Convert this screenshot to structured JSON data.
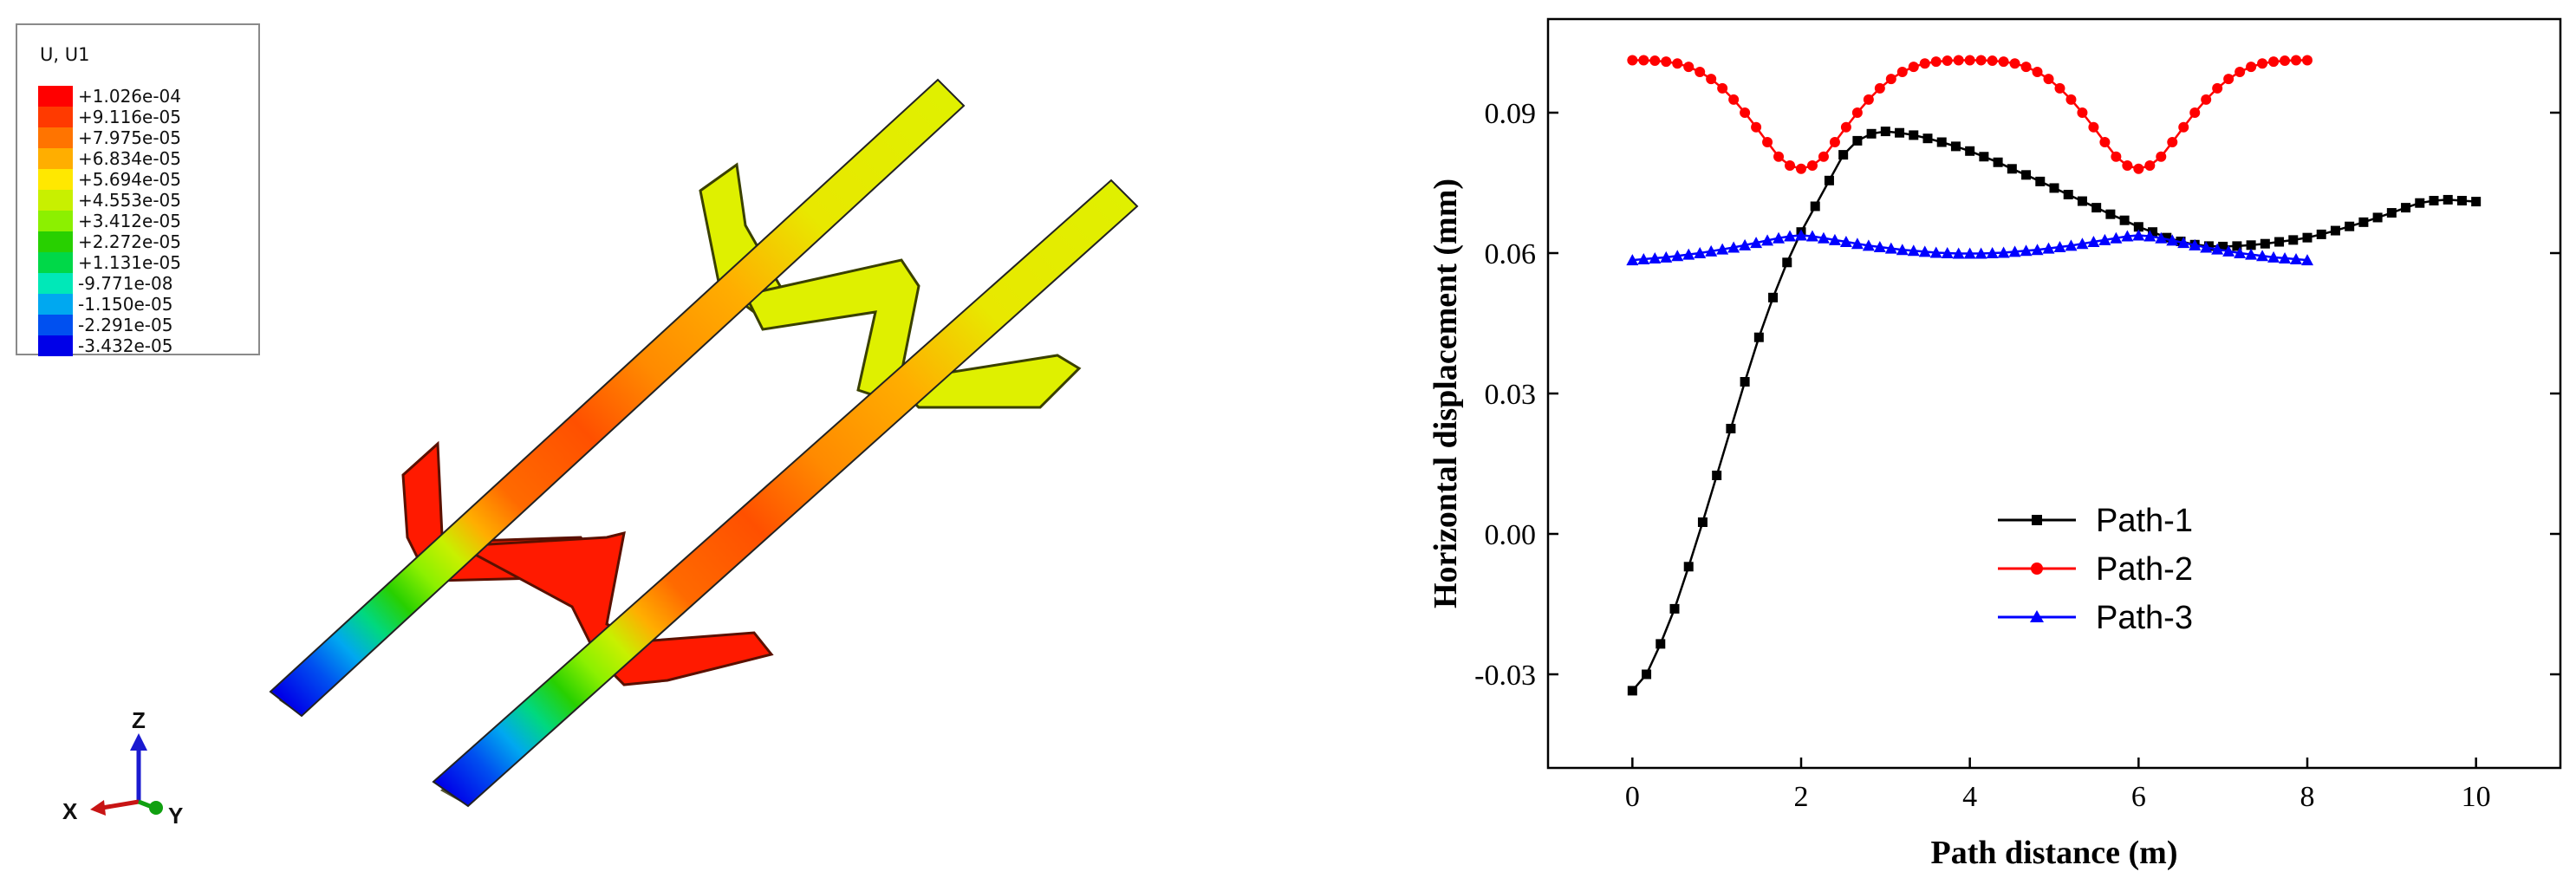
{
  "contour": {
    "title": "U, U1",
    "levels": [
      {
        "label": "+1.026e-04",
        "color": "#ff0000"
      },
      {
        "label": "+9.116e-05",
        "color": "#ff3a00"
      },
      {
        "label": "+7.975e-05",
        "color": "#ff7400"
      },
      {
        "label": "+6.834e-05",
        "color": "#ffae00"
      },
      {
        "label": "+5.694e-05",
        "color": "#ffe800"
      },
      {
        "label": "+4.553e-05",
        "color": "#c8f000"
      },
      {
        "label": "+3.412e-05",
        "color": "#8cf000"
      },
      {
        "label": "+2.272e-05",
        "color": "#28d000"
      },
      {
        "label": "+1.131e-05",
        "color": "#00d848"
      },
      {
        "label": "-9.771e-08",
        "color": "#00e8b8"
      },
      {
        "label": "-1.150e-05",
        "color": "#00a8f0"
      },
      {
        "label": "-2.291e-05",
        "color": "#0050f0"
      },
      {
        "label": "-3.432e-05",
        "color": "#0000e8"
      }
    ]
  },
  "triad": {
    "x": "X",
    "y": "Y",
    "z": "Z"
  },
  "chart_data": {
    "type": "line",
    "xlabel": "Path distance (m)",
    "ylabel": "Horizontal displacement (mm)",
    "xlim": [
      -1,
      11
    ],
    "ylim": [
      -0.05,
      0.11
    ],
    "xticks": [
      0,
      2,
      4,
      6,
      8,
      10
    ],
    "xtick_labels": [
      "0",
      "2",
      "4",
      "6",
      "8",
      "10"
    ],
    "yticks": [
      -0.03,
      0.0,
      0.03,
      0.06,
      0.09
    ],
    "ytick_labels": [
      "-0.03",
      "0.00",
      "0.03",
      "0.06",
      "0.09"
    ],
    "legend_position": "center",
    "series": [
      {
        "name": "Path-1",
        "color": "#000000",
        "marker": "square",
        "x": [
          0,
          0.1667,
          0.3333,
          0.5,
          0.6667,
          0.8333,
          1.0,
          1.1667,
          1.3333,
          1.5,
          1.6667,
          1.8333,
          2.0,
          2.1667,
          2.3333,
          2.5,
          2.6667,
          2.8333,
          3.0,
          3.1667,
          3.3333,
          3.5,
          3.6667,
          3.8333,
          4.0,
          4.1667,
          4.3333,
          4.5,
          4.6667,
          4.8333,
          5.0,
          5.1667,
          5.3333,
          5.5,
          5.6667,
          5.8333,
          6.0,
          6.1667,
          6.3333,
          6.5,
          6.6667,
          6.8333,
          7.0,
          7.1667,
          7.3333,
          7.5,
          7.6667,
          7.8333,
          8.0,
          8.1667,
          8.3333,
          8.5,
          8.6667,
          8.8333,
          9.0,
          9.1667,
          9.3333,
          9.5,
          9.6667,
          9.8333,
          10.0
        ],
        "y": [
          -0.0335,
          -0.03,
          -0.0235,
          -0.016,
          -0.007,
          0.0025,
          0.0125,
          0.0225,
          0.0325,
          0.042,
          0.0505,
          0.058,
          0.0645,
          0.07,
          0.0755,
          0.081,
          0.084,
          0.0855,
          0.086,
          0.0857,
          0.0852,
          0.0845,
          0.0837,
          0.0828,
          0.0818,
          0.0806,
          0.0794,
          0.078,
          0.0767,
          0.0753,
          0.0739,
          0.0725,
          0.0711,
          0.0697,
          0.0683,
          0.067,
          0.0656,
          0.0645,
          0.0633,
          0.0625,
          0.0618,
          0.0615,
          0.0614,
          0.0615,
          0.0617,
          0.062,
          0.0624,
          0.0628,
          0.0633,
          0.064,
          0.0648,
          0.0657,
          0.0666,
          0.0676,
          0.0686,
          0.0697,
          0.0707,
          0.0712,
          0.0714,
          0.0712,
          0.071
        ]
      },
      {
        "name": "Path-2",
        "color": "#ff0000",
        "marker": "circle",
        "x": [
          0,
          0.1333,
          0.2667,
          0.4,
          0.5333,
          0.6667,
          0.8,
          0.9333,
          1.0667,
          1.2,
          1.3333,
          1.4667,
          1.6,
          1.7333,
          1.8667,
          2.0,
          2.1333,
          2.2667,
          2.4,
          2.5333,
          2.6667,
          2.8,
          2.9333,
          3.0667,
          3.2,
          3.3333,
          3.4667,
          3.6,
          3.7333,
          3.8667,
          4.0,
          4.1333,
          4.2667,
          4.4,
          4.5333,
          4.6667,
          4.8,
          4.9333,
          5.0667,
          5.2,
          5.3333,
          5.4667,
          5.6,
          5.7333,
          5.8667,
          6.0,
          6.1333,
          6.2667,
          6.4,
          6.5333,
          6.6667,
          6.8,
          6.9333,
          7.0667,
          7.2,
          7.3333,
          7.4667,
          7.6,
          7.7333,
          7.8667,
          8.0
        ],
        "y": [
          0.1012,
          0.1012,
          0.1011,
          0.1009,
          0.1005,
          0.0998,
          0.0987,
          0.0972,
          0.0952,
          0.0928,
          0.09,
          0.0869,
          0.0837,
          0.0806,
          0.0787,
          0.078,
          0.0787,
          0.0806,
          0.0837,
          0.0869,
          0.09,
          0.0928,
          0.0952,
          0.0972,
          0.0987,
          0.0998,
          0.1005,
          0.1009,
          0.1011,
          0.1012,
          0.1012,
          0.1012,
          0.1011,
          0.1009,
          0.1005,
          0.0998,
          0.0987,
          0.0972,
          0.0952,
          0.0928,
          0.09,
          0.0869,
          0.0837,
          0.0806,
          0.0787,
          0.078,
          0.0787,
          0.0806,
          0.0837,
          0.0869,
          0.09,
          0.0928,
          0.0952,
          0.0972,
          0.0987,
          0.0998,
          0.1005,
          0.1009,
          0.1011,
          0.1012,
          0.1012
        ]
      },
      {
        "name": "Path-3",
        "color": "#0000ff",
        "marker": "triangle",
        "x": [
          0,
          0.1333,
          0.2667,
          0.4,
          0.5333,
          0.6667,
          0.8,
          0.9333,
          1.0667,
          1.2,
          1.3333,
          1.4667,
          1.6,
          1.7333,
          1.8667,
          2.0,
          2.1333,
          2.2667,
          2.4,
          2.5333,
          2.6667,
          2.8,
          2.9333,
          3.0667,
          3.2,
          3.3333,
          3.4667,
          3.6,
          3.7333,
          3.8667,
          4.0,
          4.1333,
          4.2667,
          4.4,
          4.5333,
          4.6667,
          4.8,
          4.9333,
          5.0667,
          5.2,
          5.3333,
          5.4667,
          5.6,
          5.7333,
          5.8667,
          6.0,
          6.1333,
          6.2667,
          6.4,
          6.5333,
          6.6667,
          6.8,
          6.9333,
          7.0667,
          7.2,
          7.3333,
          7.4667,
          7.6,
          7.7333,
          7.8667,
          8.0
        ],
        "y": [
          0.0585,
          0.0587,
          0.0589,
          0.0591,
          0.0594,
          0.0597,
          0.06,
          0.0604,
          0.0608,
          0.0612,
          0.0617,
          0.0622,
          0.0627,
          0.0632,
          0.0636,
          0.0638,
          0.0636,
          0.0632,
          0.0628,
          0.0624,
          0.062,
          0.0616,
          0.0613,
          0.061,
          0.0607,
          0.0605,
          0.0603,
          0.0601,
          0.06,
          0.0599,
          0.0599,
          0.0599,
          0.06,
          0.0601,
          0.0603,
          0.0605,
          0.0607,
          0.061,
          0.0613,
          0.0616,
          0.062,
          0.0624,
          0.0628,
          0.0632,
          0.0636,
          0.0638,
          0.0636,
          0.0632,
          0.0627,
          0.0622,
          0.0617,
          0.0612,
          0.0608,
          0.0604,
          0.06,
          0.0597,
          0.0594,
          0.0591,
          0.0589,
          0.0587,
          0.0585
        ]
      }
    ]
  }
}
